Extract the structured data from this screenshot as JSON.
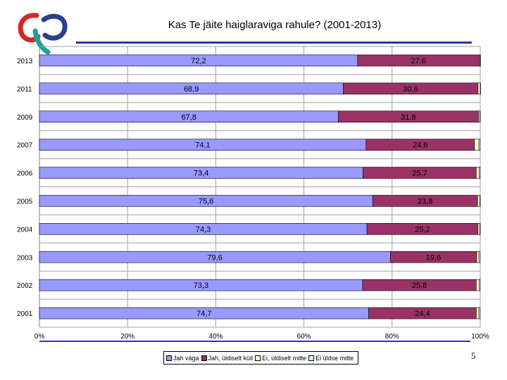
{
  "title": "Kas Te jäite haiglaraviga rahule? (2001-2013)",
  "page_number": "5",
  "colors": {
    "jah_vaga": "#9999ff",
    "jah_uldiselt_kull": "#993366",
    "ei_uldiselt_mitte": "#ffffcc",
    "ei_uldse_mitte": "#ccffff",
    "rule": "#3333aa"
  },
  "chart_data": {
    "type": "bar",
    "orientation": "horizontal",
    "stacked": "percent",
    "title": "Kas Te jäite haiglaraviga rahule? (2001-2013)",
    "categories": [
      "2013",
      "2011",
      "2009",
      "2007",
      "2006",
      "2005",
      "2004",
      "2003",
      "2002",
      "2001"
    ],
    "series": [
      {
        "name": "Jah väga",
        "values": [
          72.2,
          68.9,
          67.8,
          74.1,
          73.4,
          75.6,
          74.3,
          79.6,
          73.3,
          74.7
        ],
        "labels": [
          "72,2",
          "68,9",
          "67,8",
          "74,1",
          "73,4",
          "75,6",
          "74,3",
          "79,6",
          "73,3",
          "74,7"
        ]
      },
      {
        "name": "Jah, üldiselt küll",
        "values": [
          27.6,
          30.6,
          31.8,
          24.6,
          25.7,
          23.8,
          25.2,
          19.6,
          25.8,
          24.4
        ],
        "labels": [
          "27,6",
          "30,6",
          "31,8",
          "24,6",
          "25,7",
          "23,8",
          "25,2",
          "19,6",
          "25,8",
          "24,4"
        ]
      },
      {
        "name": "Ei, üldiselt mitte",
        "values": [
          0.2,
          0.5,
          0.3,
          1.0,
          0.7,
          0.5,
          0.4,
          0.5,
          0.7,
          0.6
        ]
      },
      {
        "name": "Ei üldse mitte",
        "values": [
          0.0,
          0.0,
          0.1,
          0.3,
          0.2,
          0.1,
          0.1,
          0.3,
          0.2,
          0.3
        ]
      }
    ],
    "x_ticks": [
      "0%",
      "20%",
      "40%",
      "60%",
      "80%",
      "100%"
    ],
    "xlim": [
      0,
      100
    ],
    "grid": true,
    "legend": "bottom"
  },
  "legend": {
    "items": [
      "Jah väga",
      "Jah, üldiselt küll",
      "Ei, üldiselt mitte",
      "Ei üldse mitte"
    ]
  }
}
